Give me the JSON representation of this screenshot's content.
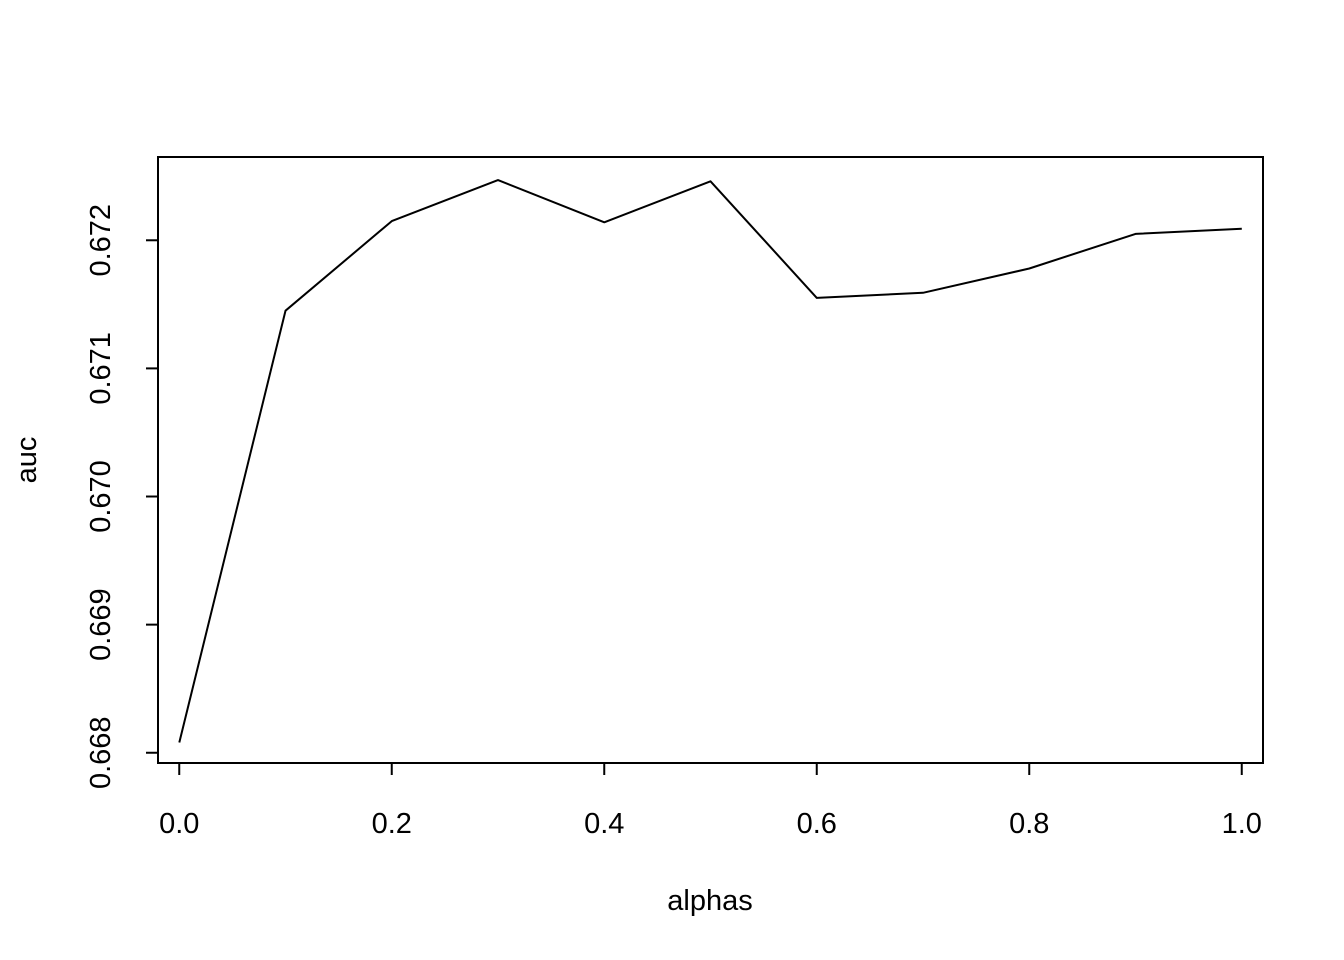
{
  "chart_data": {
    "type": "line",
    "title": "",
    "xlabel": "alphas",
    "ylabel": "auc",
    "xlim": [
      -0.02,
      1.02
    ],
    "ylim": [
      0.66792,
      0.67265
    ],
    "x_ticks": [
      0.0,
      0.2,
      0.4,
      0.6,
      0.8,
      1.0
    ],
    "x_tick_labels": [
      "0.0",
      "0.2",
      "0.4",
      "0.6",
      "0.8",
      "1.0"
    ],
    "y_ticks": [
      0.668,
      0.669,
      0.67,
      0.671,
      0.672
    ],
    "y_tick_labels": [
      "0.668",
      "0.669",
      "0.670",
      "0.671",
      "0.672"
    ],
    "grid": false,
    "legend": "none",
    "line_color": "#000000",
    "series": [
      {
        "x": [
          0.0,
          0.1,
          0.2,
          0.3,
          0.4,
          0.5,
          0.6,
          0.7,
          0.8,
          0.9,
          1.0
        ],
        "values": [
          0.66808,
          0.67145,
          0.67215,
          0.67247,
          0.67214,
          0.67246,
          0.67155,
          0.67159,
          0.67178,
          0.67205,
          0.67209
        ]
      }
    ]
  }
}
